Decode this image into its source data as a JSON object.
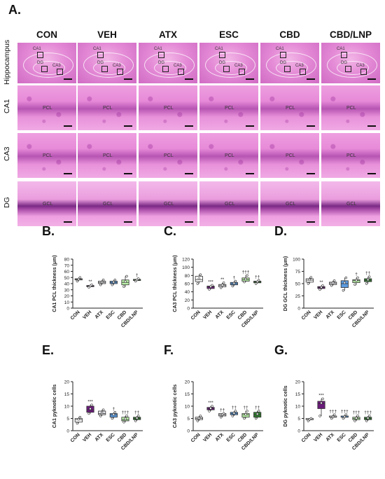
{
  "figure": {
    "panel_a": "A.",
    "groups": [
      "CON",
      "VEH",
      "ATX",
      "ESC",
      "CBD",
      "CBD/LNP"
    ],
    "rows": [
      {
        "label": "Hippocampus",
        "kind": "hippo"
      },
      {
        "label": "CA1",
        "kind": "cells",
        "layer": "PCL"
      },
      {
        "label": "CA3",
        "kind": "cells",
        "layer": "PCL"
      },
      {
        "label": "DG",
        "kind": "dg",
        "layer": "GCL"
      }
    ],
    "hippo_labels": [
      "CA1",
      "DG",
      "CA3"
    ]
  },
  "colors": {
    "CON": "#ffffff",
    "VEH": "#6a1b7a",
    "ATX": "#e8e8ee",
    "ESC": "#5b9be0",
    "CBD": "#b9f0a8",
    "CBD/LNP": "#2f7a2f"
  },
  "chart_data": [
    {
      "panel": "B.",
      "type": "box",
      "ylabel": "CA1 PCL thickness (μm)",
      "ylim": [
        0,
        80
      ],
      "yticks": [
        0,
        10,
        20,
        30,
        40,
        50,
        60,
        70,
        80
      ],
      "categories": [
        "CON",
        "VEH",
        "ATX",
        "ESC",
        "CBD",
        "CBD/LNP"
      ],
      "boxes": [
        [
          44,
          46,
          47,
          48,
          50
        ],
        [
          34,
          35,
          36,
          37,
          38
        ],
        [
          38,
          40,
          42,
          44,
          46
        ],
        [
          38,
          40,
          42,
          44,
          46
        ],
        [
          35,
          38,
          42,
          46,
          52
        ],
        [
          44,
          45,
          46,
          47,
          48
        ]
      ],
      "annotations": [
        "",
        "**",
        "",
        "",
        "",
        "†"
      ]
    },
    {
      "panel": "C.",
      "type": "box",
      "ylabel": "CA3 PCL thickness (μm)",
      "ylim": [
        0,
        120
      ],
      "yticks": [
        0,
        20,
        40,
        60,
        80,
        100,
        120
      ],
      "categories": [
        "CON",
        "VEH",
        "ATX",
        "ESC",
        "CBD",
        "CBD/LNP"
      ],
      "boxes": [
        [
          60,
          65,
          70,
          78,
          82
        ],
        [
          46,
          48,
          52,
          54,
          56
        ],
        [
          50,
          52,
          56,
          58,
          62
        ],
        [
          54,
          57,
          60,
          63,
          66
        ],
        [
          64,
          66,
          70,
          74,
          80
        ],
        [
          60,
          62,
          64,
          66,
          68
        ]
      ],
      "annotations": [
        "",
        "***",
        "**",
        "†",
        "†††",
        "††"
      ]
    },
    {
      "panel": "D.",
      "type": "box",
      "ylabel": "DG GCL thickness (μm)",
      "ylim": [
        0,
        100
      ],
      "yticks": [
        0,
        25,
        50,
        75,
        100
      ],
      "categories": [
        "CON",
        "VEH",
        "ATX",
        "ESC",
        "CBD",
        "CBD/LNP"
      ],
      "boxes": [
        [
          50,
          53,
          57,
          60,
          63
        ],
        [
          38,
          40,
          42,
          44,
          46
        ],
        [
          46,
          48,
          51,
          53,
          56
        ],
        [
          36,
          42,
          50,
          56,
          62
        ],
        [
          48,
          52,
          56,
          58,
          62
        ],
        [
          50,
          54,
          57,
          60,
          64
        ]
      ],
      "annotations": [
        "",
        "**",
        "",
        "",
        "†",
        "††"
      ]
    },
    {
      "panel": "E.",
      "type": "box",
      "ylabel": "CA1 pyknotic cells",
      "ylim": [
        0,
        20
      ],
      "yticks": [
        0,
        5,
        10,
        15,
        20
      ],
      "categories": [
        "CON",
        "VEH",
        "ATX",
        "ESC",
        "CBD",
        "CBD/LNP"
      ],
      "boxes": [
        [
          3,
          3.5,
          4.5,
          5,
          5.5
        ],
        [
          7,
          7.5,
          8.5,
          10,
          10.5
        ],
        [
          6,
          6.5,
          7,
          8,
          8.5
        ],
        [
          5,
          5.5,
          6.5,
          7,
          7.5
        ],
        [
          3.5,
          4,
          4.5,
          5.5,
          6
        ],
        [
          4,
          4.5,
          5,
          5.5,
          6
        ]
      ],
      "annotations": [
        "",
        "***",
        "",
        "†",
        "†††",
        "††"
      ]
    },
    {
      "panel": "F.",
      "type": "box",
      "ylabel": "CA3 pyknotic cells",
      "ylim": [
        0,
        20
      ],
      "yticks": [
        0,
        5,
        10,
        15,
        20
      ],
      "categories": [
        "CON",
        "VEH",
        "ATX",
        "ESC",
        "CBD",
        "CBD/LNP"
      ],
      "boxes": [
        [
          4,
          4.5,
          5,
          5.5,
          6
        ],
        [
          8,
          8.5,
          9,
          9.5,
          10
        ],
        [
          5.5,
          6,
          6.5,
          7,
          7
        ],
        [
          6,
          6.5,
          7,
          7.5,
          8
        ],
        [
          5,
          5.5,
          6.5,
          7,
          8
        ],
        [
          5,
          5.5,
          6.5,
          7.5,
          8
        ]
      ],
      "annotations": [
        "",
        "***",
        "††",
        "††",
        "††",
        "††"
      ]
    },
    {
      "panel": "G.",
      "type": "box",
      "ylabel": "DG pyknotic cells",
      "ylim": [
        0,
        20
      ],
      "yticks": [
        0,
        5,
        10,
        15,
        20
      ],
      "categories": [
        "CON",
        "VEH",
        "ATX",
        "ESC",
        "CBD",
        "CBD/LNP"
      ],
      "boxes": [
        [
          4,
          4.5,
          4.5,
          5,
          5
        ],
        [
          6,
          9,
          11,
          12,
          13
        ],
        [
          5,
          5.5,
          5.5,
          6,
          6.5
        ],
        [
          5,
          5.5,
          5.5,
          6,
          6.5
        ],
        [
          4,
          4.5,
          5,
          5.5,
          6
        ],
        [
          4,
          4.5,
          5,
          5.5,
          6
        ]
      ],
      "annotations": [
        "",
        "***",
        "†††",
        "†††",
        "†††",
        "†††"
      ]
    }
  ]
}
